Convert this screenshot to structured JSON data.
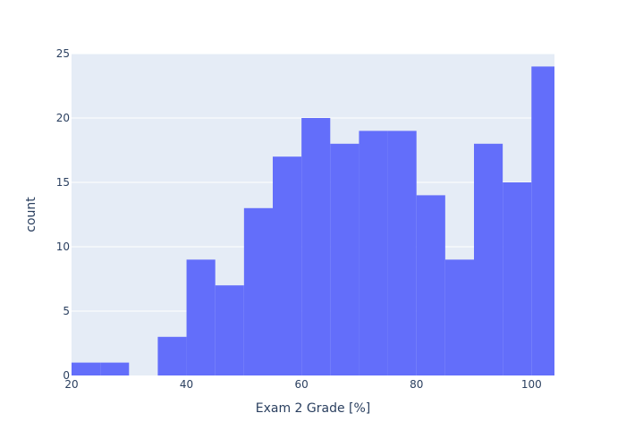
{
  "chart_data": {
    "type": "bar",
    "title": "",
    "xlabel": "Exam 2 Grade [%]",
    "ylabel": "count",
    "xlim": [
      20,
      104
    ],
    "ylim": [
      0,
      25
    ],
    "x_ticks": [
      20,
      40,
      60,
      80,
      100
    ],
    "y_ticks": [
      0,
      5,
      10,
      15,
      20,
      25
    ],
    "grid": true,
    "bin_width": 5,
    "bins": [
      {
        "start": 20,
        "end": 25,
        "count": 1
      },
      {
        "start": 25,
        "end": 30,
        "count": 1
      },
      {
        "start": 30,
        "end": 35,
        "count": 0
      },
      {
        "start": 35,
        "end": 40,
        "count": 3
      },
      {
        "start": 40,
        "end": 45,
        "count": 9
      },
      {
        "start": 45,
        "end": 50,
        "count": 7
      },
      {
        "start": 50,
        "end": 55,
        "count": 13
      },
      {
        "start": 55,
        "end": 60,
        "count": 17
      },
      {
        "start": 60,
        "end": 65,
        "count": 20
      },
      {
        "start": 65,
        "end": 70,
        "count": 18
      },
      {
        "start": 70,
        "end": 75,
        "count": 19
      },
      {
        "start": 75,
        "end": 80,
        "count": 19
      },
      {
        "start": 80,
        "end": 85,
        "count": 14
      },
      {
        "start": 85,
        "end": 90,
        "count": 9
      },
      {
        "start": 90,
        "end": 95,
        "count": 18
      },
      {
        "start": 95,
        "end": 100,
        "count": 15
      },
      {
        "start": 100,
        "end": 104,
        "count": 24
      }
    ],
    "colors": {
      "bar": "#636efa",
      "plot_background": "#e5ecf6",
      "grid": "#ffffff",
      "text": "#2a3f5f"
    }
  }
}
